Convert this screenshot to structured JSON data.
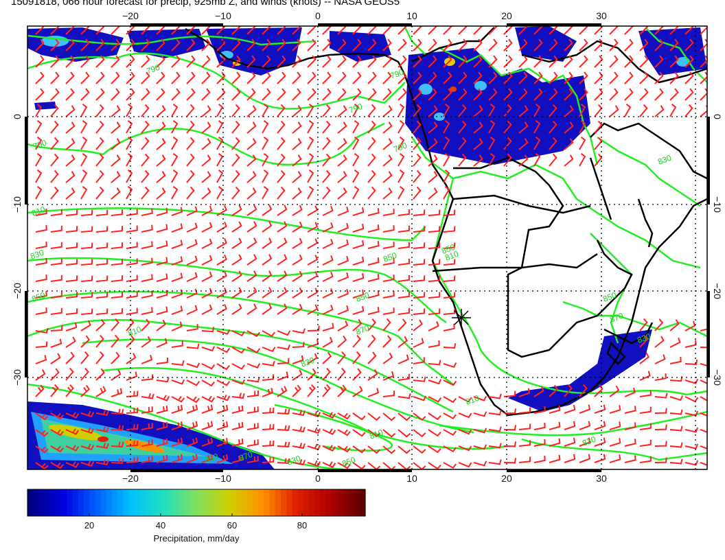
{
  "title": "15091818, 066 hour forecast for precip, 925mb Z, and winds (knots) -- NASA GEOS5",
  "x_ticks": [
    "−20",
    "−10",
    "0",
    "10",
    "20",
    "30"
  ],
  "y_ticks": [
    "0",
    "−10",
    "−20",
    "−30"
  ],
  "contour_labels": [
    "790",
    "790",
    "790",
    "790",
    "790",
    "810",
    "830",
    "850",
    "850",
    "850",
    "810",
    "870",
    "830",
    "850",
    "870",
    "810",
    "810",
    "810",
    "830",
    "830",
    "850",
    "870",
    "830",
    "850",
    "850",
    "830"
  ],
  "colorbar": {
    "label": "Precipitation, mm/day",
    "ticks": [
      "20",
      "40",
      "60",
      "80"
    ],
    "colors": [
      "#000080",
      "#0000e0",
      "#0060ff",
      "#00c0ff",
      "#20e0c0",
      "#80e060",
      "#d0d000",
      "#ff9000",
      "#e02000",
      "#b00000",
      "#600000"
    ]
  },
  "colors": {
    "contours": "#22ee22",
    "wind_barbs": "#ff2020",
    "coastlines": "#000000",
    "precip_light": "#1010c0"
  }
}
